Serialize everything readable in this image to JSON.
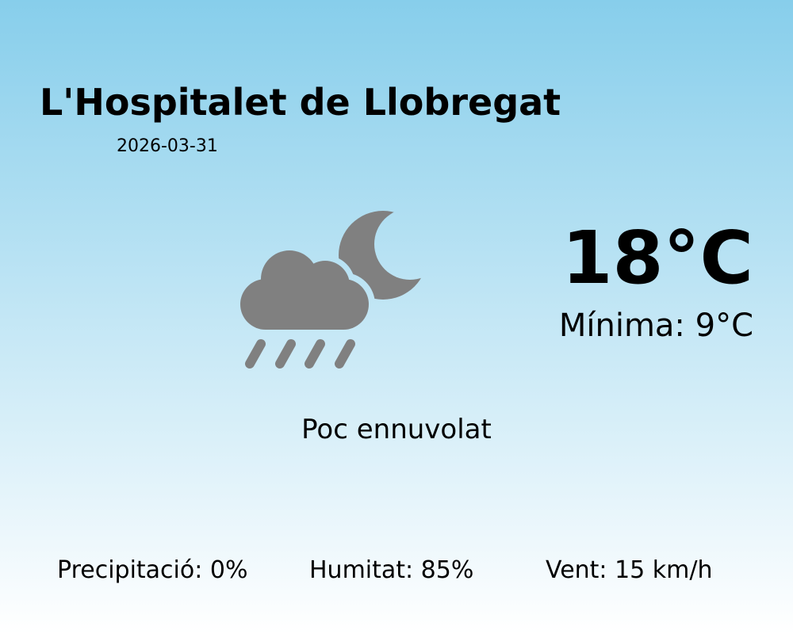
{
  "city": "L'Hospitalet de Llobregat",
  "date": "2026-03-31",
  "temperature": "18°C",
  "minimum": "Mínima: 9°C",
  "condition": "Poc ennuvolat",
  "icon": "cloud-moon-rain-icon",
  "icon_color": "#808080",
  "stats": {
    "precipitation": "Precipitació: 0%",
    "humidity": "Humitat: 85%",
    "wind": "Vent: 15 km/h"
  }
}
